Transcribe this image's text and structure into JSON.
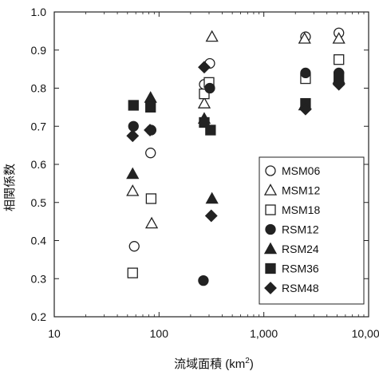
{
  "chart_data": {
    "type": "scatter",
    "xlabel": "流域面積 (km",
    "xlabel_sup": "2",
    "xlabel_tail": ")",
    "ylabel": "相関係数",
    "x_scale": "log",
    "xlim": [
      10,
      10000
    ],
    "ylim": [
      0.2,
      1.0
    ],
    "x_ticks": [
      10,
      100,
      1000,
      10000
    ],
    "x_tick_labels": [
      "10",
      "100",
      "1,000",
      "10,000"
    ],
    "y_ticks": [
      0.2,
      0.3,
      0.4,
      0.5,
      0.6,
      0.7,
      0.8,
      0.9,
      1.0
    ],
    "y_tick_labels": [
      "0.2",
      "0.3",
      "0.4",
      "0.5",
      "0.6",
      "0.7",
      "0.8",
      "0.9",
      "1.0"
    ],
    "grid": false,
    "legend_position": "bottom-right",
    "series": [
      {
        "name": "MSM06",
        "marker": "circle-open",
        "points": [
          [
            58,
            0.385
          ],
          [
            83,
            0.63
          ],
          [
            270,
            0.81
          ],
          [
            305,
            0.865
          ],
          [
            2500,
            0.935
          ],
          [
            5200,
            0.945
          ]
        ]
      },
      {
        "name": "MSM12",
        "marker": "triangle-open",
        "points": [
          [
            56,
            0.53
          ],
          [
            85,
            0.445
          ],
          [
            270,
            0.76
          ],
          [
            320,
            0.935
          ],
          [
            2450,
            0.93
          ],
          [
            5200,
            0.93
          ]
        ]
      },
      {
        "name": "MSM18",
        "marker": "square-open",
        "points": [
          [
            56,
            0.315
          ],
          [
            84,
            0.51
          ],
          [
            270,
            0.785
          ],
          [
            300,
            0.815
          ],
          [
            2500,
            0.825
          ],
          [
            5200,
            0.875
          ]
        ]
      },
      {
        "name": "RSM12",
        "marker": "circle-filled",
        "points": [
          [
            57,
            0.7
          ],
          [
            84,
            0.69
          ],
          [
            265,
            0.295
          ],
          [
            305,
            0.8
          ],
          [
            2500,
            0.84
          ],
          [
            5200,
            0.84
          ]
        ]
      },
      {
        "name": "RSM24",
        "marker": "triangle-filled",
        "points": [
          [
            56,
            0.575
          ],
          [
            83,
            0.775
          ],
          [
            270,
            0.72
          ],
          [
            320,
            0.51
          ],
          [
            2450,
            0.755
          ],
          [
            5200,
            0.825
          ]
        ]
      },
      {
        "name": "RSM36",
        "marker": "square-filled",
        "points": [
          [
            57,
            0.755
          ],
          [
            83,
            0.75
          ],
          [
            270,
            0.71
          ],
          [
            310,
            0.69
          ],
          [
            2500,
            0.76
          ],
          [
            5200,
            0.83
          ]
        ]
      },
      {
        "name": "RSM48",
        "marker": "diamond-filled",
        "points": [
          [
            56,
            0.675
          ],
          [
            82,
            0.69
          ],
          [
            270,
            0.855
          ],
          [
            315,
            0.465
          ],
          [
            2500,
            0.745
          ],
          [
            5200,
            0.81
          ]
        ]
      }
    ]
  }
}
